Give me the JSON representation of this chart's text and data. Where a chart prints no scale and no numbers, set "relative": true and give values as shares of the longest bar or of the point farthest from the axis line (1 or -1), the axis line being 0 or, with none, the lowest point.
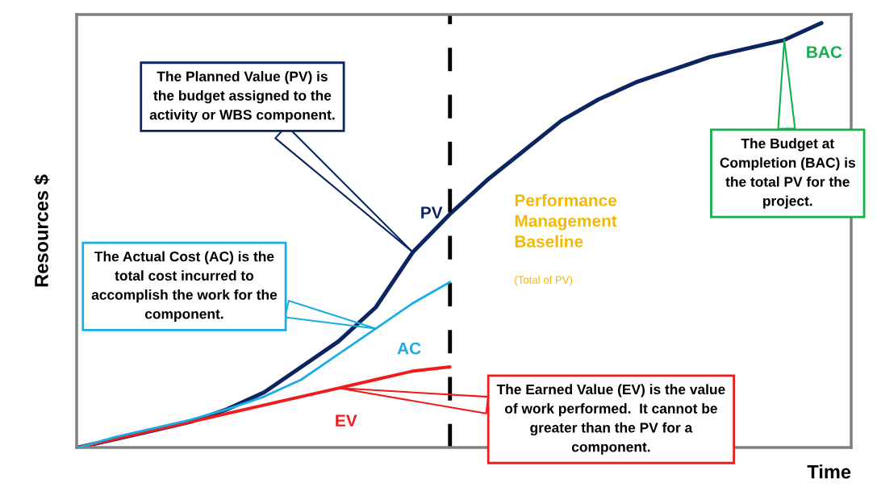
{
  "chart_data": {
    "type": "line",
    "relative": true,
    "xlabel": "Time",
    "ylabel": "Resources $",
    "categories": [
      null,
      null,
      null,
      null,
      null,
      null,
      null,
      null,
      null,
      null,
      null,
      null,
      null,
      null,
      null,
      null,
      null,
      null,
      null,
      null,
      null
    ],
    "series": [
      {
        "name": "PV",
        "color": "#0b2560",
        "values": [
          0.0,
          0.02,
          0.04,
          0.06,
          0.09,
          0.13,
          0.19,
          0.25,
          0.33,
          0.46,
          0.55,
          0.63,
          0.7,
          0.77,
          0.82,
          0.86,
          0.89,
          0.92,
          0.94,
          0.96,
          1.0
        ]
      },
      {
        "name": "AC",
        "color": "#1aade4",
        "values": [
          0.0,
          0.025,
          0.045,
          0.065,
          0.09,
          0.12,
          0.16,
          0.22,
          0.28,
          0.34,
          0.39,
          null,
          null,
          null,
          null,
          null,
          null,
          null,
          null,
          null,
          null
        ]
      },
      {
        "name": "EV",
        "color": "#ee1c1c",
        "values": [
          0.0,
          0.02,
          0.04,
          0.06,
          0.08,
          0.1,
          0.12,
          0.14,
          0.16,
          0.18,
          0.19,
          null,
          null,
          null,
          null,
          null,
          null,
          null,
          null,
          null,
          null
        ]
      }
    ],
    "annotations": [
      "The Planned Value (PV) is the budget assigned to the activity or WBS component.",
      "The Actual Cost (AC) is the total cost incurred to accomplish the work for the component.",
      "The Earned Value (EV) is the value of work performed.  It cannot be greater than the PV for a component.",
      "The Budget at Completion (BAC) is the total PV for the project.",
      "BAC",
      "Performance Management Baseline",
      "(Total of PV)"
    ],
    "line_style": "solid",
    "marker": "none"
  }
}
